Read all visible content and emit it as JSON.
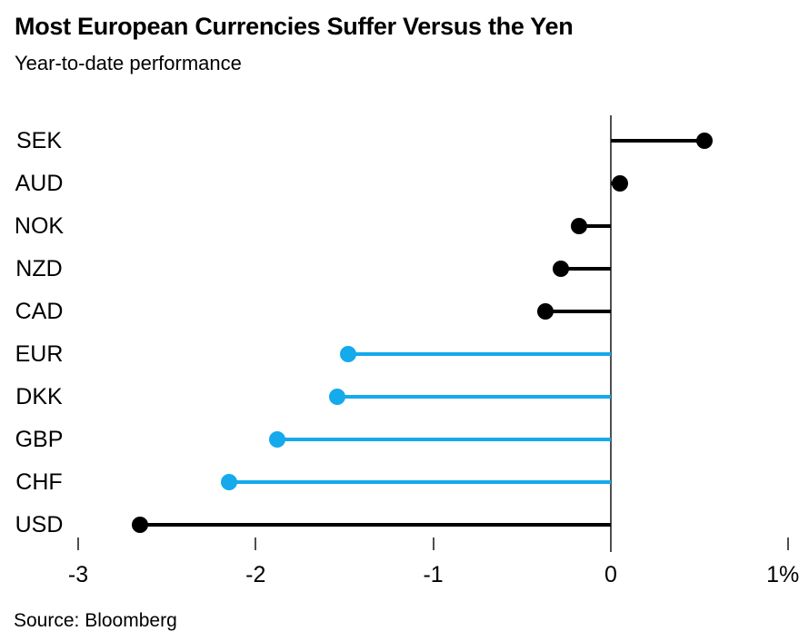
{
  "header": {
    "title": "Most European Currencies Suffer Versus the Yen",
    "subtitle": "Year-to-date performance"
  },
  "footer": {
    "source": "Source: Bloomberg"
  },
  "colors": {
    "series_default": "#000000",
    "series_highlight": "#14aaec",
    "axis": "#4f4f4f",
    "text": "#000000",
    "background": "#ffffff"
  },
  "chart_data": {
    "type": "bar",
    "variant": "horizontal-lollipop",
    "title": "Most European Currencies Suffer Versus the Yen",
    "subtitle": "Year-to-date performance",
    "unit": "%",
    "categories": [
      "SEK",
      "AUD",
      "NOK",
      "NZD",
      "CAD",
      "EUR",
      "DKK",
      "GBP",
      "CHF",
      "USD"
    ],
    "values": [
      0.53,
      0.05,
      -0.18,
      -0.28,
      -0.37,
      -1.48,
      -1.54,
      -1.88,
      -2.15,
      -2.65
    ],
    "highlighted": [
      false,
      false,
      false,
      false,
      false,
      true,
      true,
      true,
      true,
      false
    ],
    "xlim": [
      -3,
      1
    ],
    "x_ticks": [
      {
        "value": -3,
        "label": "-3"
      },
      {
        "value": -2,
        "label": "-2"
      },
      {
        "value": -1,
        "label": "-1"
      },
      {
        "value": 0,
        "label": "0"
      },
      {
        "value": 1,
        "label": "1%"
      }
    ],
    "grid": false,
    "legend": false,
    "zero_baseline": true,
    "source": "Source: Bloomberg"
  }
}
